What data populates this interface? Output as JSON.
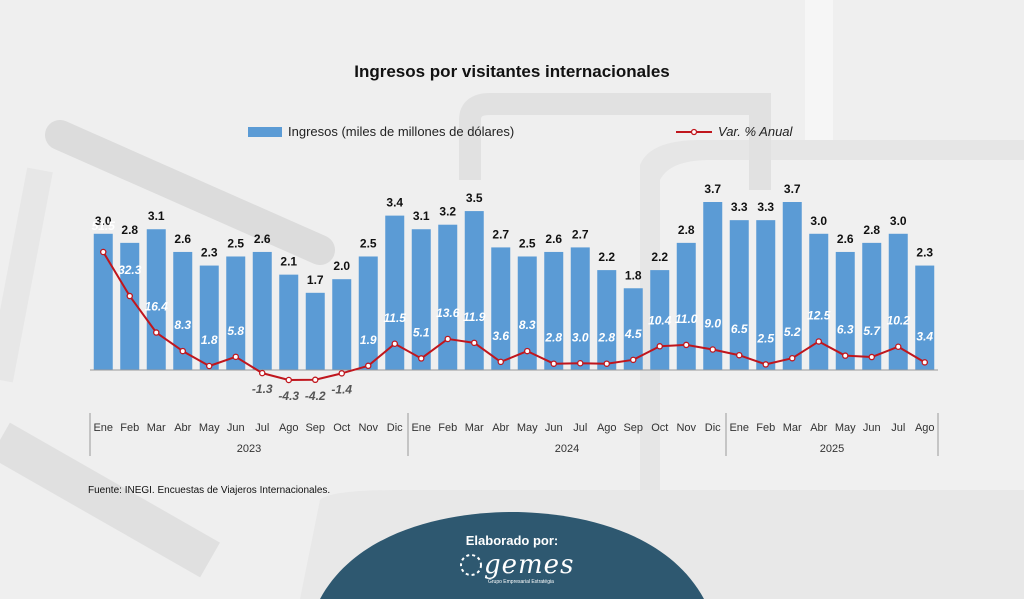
{
  "chart_data": {
    "type": "bar",
    "title": "Ingresos por visitantes internacionales",
    "categories": [
      "Ene",
      "Feb",
      "Mar",
      "Abr",
      "May",
      "Jun",
      "Jul",
      "Ago",
      "Sep",
      "Oct",
      "Nov",
      "Dic",
      "Ene",
      "Feb",
      "Mar",
      "Abr",
      "May",
      "Jun",
      "Jul",
      "Ago",
      "Sep",
      "Oct",
      "Nov",
      "Dic",
      "Ene",
      "Feb",
      "Mar",
      "Abr",
      "May",
      "Jun",
      "Jul",
      "Ago"
    ],
    "years": [
      {
        "label": "2023",
        "start": 0,
        "end": 11
      },
      {
        "label": "2024",
        "start": 12,
        "end": 23
      },
      {
        "label": "2025",
        "start": 24,
        "end": 31
      }
    ],
    "series": [
      {
        "name": "Ingresos (miles de millones de dólares)",
        "type": "bar",
        "color": "#5b9bd5",
        "values": [
          3.0,
          2.8,
          3.1,
          2.6,
          2.3,
          2.5,
          2.6,
          2.1,
          1.7,
          2.0,
          2.5,
          3.4,
          3.1,
          3.2,
          3.5,
          2.7,
          2.5,
          2.6,
          2.7,
          2.2,
          1.8,
          2.2,
          2.8,
          3.7,
          3.3,
          3.3,
          3.7,
          3.0,
          2.6,
          2.8,
          3.0,
          2.3
        ]
      },
      {
        "name": "Var. % Anual",
        "type": "line",
        "color": "#c0161d",
        "values": [
          51.5,
          32.3,
          16.4,
          8.3,
          1.8,
          5.8,
          -1.3,
          -4.3,
          -4.2,
          -1.4,
          1.9,
          11.5,
          5.1,
          13.6,
          11.9,
          3.6,
          8.3,
          2.8,
          3.0,
          2.8,
          4.5,
          10.4,
          11.0,
          9.0,
          6.5,
          2.5,
          5.2,
          12.5,
          6.3,
          5.7,
          10.2,
          3.4
        ]
      }
    ],
    "bar_ylim": [
      0,
      3.7
    ],
    "line_ylim": [
      -4.3,
      51.5
    ]
  },
  "source_note": "Fuente: INEGI. Encuestas de Viajeros Internacionales.",
  "badge": {
    "label": "Elaborado por:",
    "brand": "gemes",
    "tagline": "Grupo Empresarial Estratégia",
    "color": "#2e5870"
  }
}
